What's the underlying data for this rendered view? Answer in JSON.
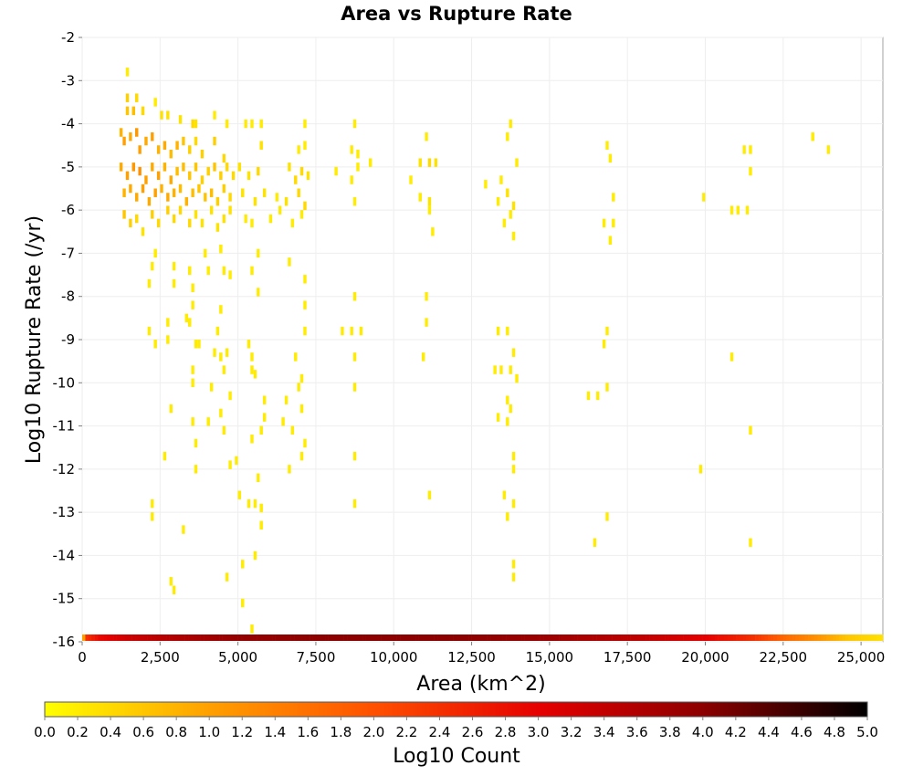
{
  "chart_data": {
    "type": "heatmap",
    "title": "Area vs Rupture Rate",
    "xlabel": "Area (km^2)",
    "ylabel": "Log10 Rupture Rate (/yr)",
    "xlim": [
      0,
      25700
    ],
    "ylim": [
      -16,
      -2
    ],
    "x_ticks": [
      0,
      2500,
      5000,
      7500,
      10000,
      12500,
      15000,
      17500,
      20000,
      22500,
      25000
    ],
    "x_tick_labels": [
      "0",
      "2,500",
      "5,000",
      "7,500",
      "10,000",
      "12,500",
      "15,000",
      "17,500",
      "20,000",
      "22,500",
      "25,000"
    ],
    "y_ticks": [
      -2,
      -3,
      -4,
      -5,
      -6,
      -7,
      -8,
      -9,
      -10,
      -11,
      -12,
      -13,
      -14,
      -15,
      -16
    ],
    "y_tick_labels": [
      "-2",
      "-3",
      "-4",
      "-5",
      "-6",
      "-7",
      "-8",
      "-9",
      "-10",
      "-11",
      "-12",
      "-13",
      "-14",
      "-15",
      "-16"
    ],
    "grid": true,
    "colorbar": {
      "label": "Log10 Count",
      "min": 0.0,
      "max": 5.0,
      "tick_labels": [
        "0.0",
        "0.2",
        "0.4",
        "0.6",
        "0.8",
        "1.0",
        "1.2",
        "1.4",
        "1.6",
        "1.8",
        "2.0",
        "2.2",
        "2.4",
        "2.6",
        "2.8",
        "3.0",
        "3.2",
        "3.4",
        "3.6",
        "3.8",
        "4.0",
        "4.2",
        "4.4",
        "4.6",
        "4.8",
        "5.0"
      ],
      "colormap": [
        "#ffff00",
        "#ffa000",
        "#ff5000",
        "#e60000",
        "#8c0000",
        "#000000"
      ]
    },
    "bin_width": 100,
    "bin_height": 0.1,
    "cells_columns": [
      "x",
      "y",
      "log10_count"
    ],
    "cells": [
      [
        1400,
        -2.8,
        0.2
      ],
      [
        1400,
        -3.4,
        0.5
      ],
      [
        1700,
        -3.4,
        0.4
      ],
      [
        1400,
        -3.7,
        0.6
      ],
      [
        1600,
        -3.7,
        0.7
      ],
      [
        1900,
        -3.7,
        0.4
      ],
      [
        2300,
        -3.5,
        0.2
      ],
      [
        2500,
        -3.8,
        0.3
      ],
      [
        2700,
        -3.8,
        0.3
      ],
      [
        3100,
        -3.9,
        0.3
      ],
      [
        3500,
        -4.0,
        0.4
      ],
      [
        3600,
        -4.0,
        0.3
      ],
      [
        4200,
        -3.8,
        0.2
      ],
      [
        4600,
        -4.0,
        0.2
      ],
      [
        5200,
        -4.0,
        0.2
      ],
      [
        5400,
        -4.0,
        0.2
      ],
      [
        5700,
        -4.0,
        0.2
      ],
      [
        7100,
        -4.0,
        0.2
      ],
      [
        8700,
        -4.0,
        0.2
      ],
      [
        11000,
        -4.3,
        0.2
      ],
      [
        13700,
        -4.0,
        0.2
      ],
      [
        13600,
        -4.3,
        0.2
      ],
      [
        16800,
        -4.5,
        0.2
      ],
      [
        21200,
        -4.6,
        0.2
      ],
      [
        23400,
        -4.3,
        0.2
      ],
      [
        23900,
        -4.6,
        0.2
      ],
      [
        1200,
        -4.2,
        0.8
      ],
      [
        1300,
        -4.4,
        1.0
      ],
      [
        1500,
        -4.3,
        0.9
      ],
      [
        1700,
        -4.2,
        1.1
      ],
      [
        1800,
        -4.6,
        1.0
      ],
      [
        2000,
        -4.4,
        0.9
      ],
      [
        2200,
        -4.3,
        1.0
      ],
      [
        2400,
        -4.6,
        0.8
      ],
      [
        2600,
        -4.5,
        0.9
      ],
      [
        2800,
        -4.7,
        0.7
      ],
      [
        3000,
        -4.5,
        0.8
      ],
      [
        3200,
        -4.4,
        0.6
      ],
      [
        3400,
        -4.6,
        0.5
      ],
      [
        3600,
        -4.4,
        0.4
      ],
      [
        3800,
        -4.7,
        0.5
      ],
      [
        4200,
        -4.4,
        0.5
      ],
      [
        4500,
        -4.8,
        0.4
      ],
      [
        5700,
        -4.5,
        0.3
      ],
      [
        6900,
        -4.6,
        0.2
      ],
      [
        7100,
        -4.5,
        0.2
      ],
      [
        8600,
        -4.6,
        0.2
      ],
      [
        8800,
        -4.7,
        0.2
      ],
      [
        9200,
        -4.9,
        0.2
      ],
      [
        10800,
        -4.9,
        0.3
      ],
      [
        11100,
        -4.9,
        0.4
      ],
      [
        11300,
        -4.9,
        0.3
      ],
      [
        13900,
        -4.9,
        0.2
      ],
      [
        16900,
        -4.8,
        0.2
      ],
      [
        21400,
        -4.6,
        0.2
      ],
      [
        1200,
        -5.0,
        0.9
      ],
      [
        1400,
        -5.2,
        1.0
      ],
      [
        1600,
        -5.0,
        1.1
      ],
      [
        1800,
        -5.1,
        1.2
      ],
      [
        2000,
        -5.3,
        1.0
      ],
      [
        2200,
        -5.0,
        0.9
      ],
      [
        2400,
        -5.2,
        1.0
      ],
      [
        2600,
        -5.0,
        0.8
      ],
      [
        2800,
        -5.3,
        0.9
      ],
      [
        3000,
        -5.1,
        0.7
      ],
      [
        3200,
        -5.0,
        0.7
      ],
      [
        3400,
        -5.2,
        0.6
      ],
      [
        3600,
        -5.0,
        0.6
      ],
      [
        3800,
        -5.3,
        0.5
      ],
      [
        4000,
        -5.1,
        0.5
      ],
      [
        4200,
        -5.0,
        0.6
      ],
      [
        4400,
        -5.2,
        0.5
      ],
      [
        4600,
        -5.0,
        0.4
      ],
      [
        4800,
        -5.2,
        0.4
      ],
      [
        5000,
        -5.0,
        0.3
      ],
      [
        5300,
        -5.2,
        0.3
      ],
      [
        5600,
        -5.1,
        0.4
      ],
      [
        6600,
        -5.0,
        0.3
      ],
      [
        6800,
        -5.3,
        0.4
      ],
      [
        7000,
        -5.1,
        0.4
      ],
      [
        7200,
        -5.2,
        0.3
      ],
      [
        8100,
        -5.1,
        0.2
      ],
      [
        8600,
        -5.3,
        0.2
      ],
      [
        8800,
        -5.0,
        0.2
      ],
      [
        10500,
        -5.3,
        0.2
      ],
      [
        12900,
        -5.4,
        0.2
      ],
      [
        13400,
        -5.3,
        0.2
      ],
      [
        21400,
        -5.1,
        0.2
      ],
      [
        1300,
        -5.6,
        0.8
      ],
      [
        1500,
        -5.5,
        0.9
      ],
      [
        1700,
        -5.7,
        0.9
      ],
      [
        1900,
        -5.5,
        1.0
      ],
      [
        2100,
        -5.8,
        0.9
      ],
      [
        2300,
        -5.6,
        1.0
      ],
      [
        2500,
        -5.5,
        0.8
      ],
      [
        2700,
        -5.7,
        0.9
      ],
      [
        2900,
        -5.6,
        0.8
      ],
      [
        3100,
        -5.5,
        0.7
      ],
      [
        3300,
        -5.8,
        0.8
      ],
      [
        3500,
        -5.6,
        0.7
      ],
      [
        3700,
        -5.5,
        0.6
      ],
      [
        3900,
        -5.7,
        0.6
      ],
      [
        4100,
        -5.6,
        0.7
      ],
      [
        4300,
        -5.8,
        0.5
      ],
      [
        4500,
        -5.5,
        0.5
      ],
      [
        4700,
        -5.7,
        0.4
      ],
      [
        5100,
        -5.6,
        0.3
      ],
      [
        5500,
        -5.8,
        0.3
      ],
      [
        5800,
        -5.6,
        0.3
      ],
      [
        6200,
        -5.7,
        0.2
      ],
      [
        6500,
        -5.8,
        0.3
      ],
      [
        6900,
        -5.6,
        0.4
      ],
      [
        7100,
        -5.9,
        0.4
      ],
      [
        8700,
        -5.8,
        0.2
      ],
      [
        10800,
        -5.7,
        0.2
      ],
      [
        11100,
        -5.8,
        0.3
      ],
      [
        13300,
        -5.8,
        0.2
      ],
      [
        13600,
        -5.6,
        0.3
      ],
      [
        13800,
        -5.9,
        0.3
      ],
      [
        17000,
        -5.7,
        0.2
      ],
      [
        19900,
        -5.7,
        0.2
      ],
      [
        1300,
        -6.1,
        0.6
      ],
      [
        1500,
        -6.3,
        0.5
      ],
      [
        1700,
        -6.2,
        0.4
      ],
      [
        1900,
        -6.5,
        0.3
      ],
      [
        2200,
        -6.1,
        0.5
      ],
      [
        2400,
        -6.3,
        0.4
      ],
      [
        2700,
        -6.0,
        0.5
      ],
      [
        2900,
        -6.2,
        0.4
      ],
      [
        3100,
        -6.0,
        0.4
      ],
      [
        3400,
        -6.3,
        0.4
      ],
      [
        3600,
        -6.1,
        0.3
      ],
      [
        3800,
        -6.3,
        0.3
      ],
      [
        4100,
        -6.0,
        0.3
      ],
      [
        4300,
        -6.4,
        0.3
      ],
      [
        4500,
        -6.2,
        0.3
      ],
      [
        4700,
        -6.0,
        0.3
      ],
      [
        5200,
        -6.2,
        0.2
      ],
      [
        5400,
        -6.3,
        0.2
      ],
      [
        6000,
        -6.2,
        0.2
      ],
      [
        6300,
        -6.0,
        0.2
      ],
      [
        6700,
        -6.3,
        0.2
      ],
      [
        7000,
        -6.1,
        0.2
      ],
      [
        11100,
        -6.0,
        0.2
      ],
      [
        11200,
        -6.5,
        0.2
      ],
      [
        13500,
        -6.3,
        0.2
      ],
      [
        13700,
        -6.1,
        0.2
      ],
      [
        13800,
        -6.6,
        0.2
      ],
      [
        16700,
        -6.3,
        0.2
      ],
      [
        16900,
        -6.7,
        0.2
      ],
      [
        17000,
        -6.3,
        0.2
      ],
      [
        20800,
        -6.0,
        0.2
      ],
      [
        21000,
        -6.0,
        0.2
      ],
      [
        21300,
        -6.0,
        0.2
      ],
      [
        2300,
        -7.0,
        0.2
      ],
      [
        2200,
        -7.3,
        0.2
      ],
      [
        2100,
        -7.7,
        0.2
      ],
      [
        2900,
        -7.3,
        0.2
      ],
      [
        2900,
        -7.7,
        0.2
      ],
      [
        3400,
        -7.4,
        0.2
      ],
      [
        3500,
        -7.8,
        0.2
      ],
      [
        3500,
        -8.2,
        0.2
      ],
      [
        3900,
        -7.0,
        0.2
      ],
      [
        4000,
        -7.4,
        0.2
      ],
      [
        4400,
        -6.9,
        0.2
      ],
      [
        4500,
        -7.4,
        0.2
      ],
      [
        4700,
        -7.5,
        0.2
      ],
      [
        5400,
        -7.4,
        0.2
      ],
      [
        5600,
        -7.0,
        0.2
      ],
      [
        5600,
        -7.9,
        0.2
      ],
      [
        6600,
        -7.2,
        0.2
      ],
      [
        7100,
        -7.6,
        0.2
      ],
      [
        7100,
        -8.2,
        0.2
      ],
      [
        8700,
        -8.0,
        0.2
      ],
      [
        11000,
        -8.0,
        0.2
      ],
      [
        3400,
        -8.6,
        0.2
      ],
      [
        4400,
        -8.3,
        0.2
      ],
      [
        2100,
        -8.8,
        0.2
      ],
      [
        2300,
        -9.1,
        0.2
      ],
      [
        2700,
        -8.6,
        0.2
      ],
      [
        2700,
        -9.0,
        0.2
      ],
      [
        3300,
        -8.5,
        0.2
      ],
      [
        3600,
        -9.1,
        0.2
      ],
      [
        3700,
        -9.1,
        0.2
      ],
      [
        4200,
        -9.3,
        0.2
      ],
      [
        4300,
        -8.8,
        0.2
      ],
      [
        4400,
        -9.4,
        0.2
      ],
      [
        4600,
        -9.3,
        0.2
      ],
      [
        5300,
        -9.1,
        0.2
      ],
      [
        5400,
        -9.4,
        0.2
      ],
      [
        5400,
        -9.7,
        0.2
      ],
      [
        6800,
        -9.4,
        0.2
      ],
      [
        7100,
        -8.8,
        0.2
      ],
      [
        7000,
        -9.9,
        0.2
      ],
      [
        8300,
        -8.8,
        0.2
      ],
      [
        8600,
        -8.8,
        0.2
      ],
      [
        8700,
        -9.4,
        0.2
      ],
      [
        8900,
        -8.8,
        0.2
      ],
      [
        10900,
        -9.4,
        0.2
      ],
      [
        11000,
        -8.6,
        0.2
      ],
      [
        13300,
        -8.8,
        0.2
      ],
      [
        13600,
        -8.8,
        0.2
      ],
      [
        13800,
        -9.3,
        0.2
      ],
      [
        16800,
        -8.8,
        0.2
      ],
      [
        16700,
        -9.1,
        0.2
      ],
      [
        20800,
        -9.4,
        0.2
      ],
      [
        3500,
        -9.7,
        0.2
      ],
      [
        3500,
        -10.0,
        0.2
      ],
      [
        4100,
        -10.1,
        0.2
      ],
      [
        4500,
        -9.7,
        0.2
      ],
      [
        4700,
        -10.3,
        0.2
      ],
      [
        5500,
        -9.8,
        0.2
      ],
      [
        5800,
        -10.4,
        0.2
      ],
      [
        6500,
        -10.4,
        0.2
      ],
      [
        6900,
        -10.1,
        0.2
      ],
      [
        7000,
        -10.6,
        0.2
      ],
      [
        8700,
        -10.1,
        0.2
      ],
      [
        13200,
        -9.7,
        0.2
      ],
      [
        13400,
        -9.7,
        0.2
      ],
      [
        13700,
        -9.7,
        0.2
      ],
      [
        13900,
        -9.9,
        0.2
      ],
      [
        13600,
        -10.4,
        0.2
      ],
      [
        16200,
        -10.3,
        0.2
      ],
      [
        16500,
        -10.3,
        0.2
      ],
      [
        16800,
        -10.1,
        0.2
      ],
      [
        2800,
        -10.6,
        0.2
      ],
      [
        3500,
        -10.9,
        0.2
      ],
      [
        3600,
        -11.4,
        0.2
      ],
      [
        4000,
        -10.9,
        0.2
      ],
      [
        4400,
        -10.7,
        0.2
      ],
      [
        4500,
        -11.1,
        0.2
      ],
      [
        5400,
        -11.3,
        0.2
      ],
      [
        5800,
        -10.8,
        0.2
      ],
      [
        5700,
        -11.1,
        0.2
      ],
      [
        6400,
        -10.9,
        0.2
      ],
      [
        6700,
        -11.1,
        0.2
      ],
      [
        7100,
        -11.4,
        0.2
      ],
      [
        13300,
        -10.8,
        0.2
      ],
      [
        13600,
        -10.9,
        0.2
      ],
      [
        13700,
        -10.6,
        0.2
      ],
      [
        21400,
        -11.1,
        0.2
      ],
      [
        2600,
        -11.7,
        0.2
      ],
      [
        3600,
        -12.0,
        0.2
      ],
      [
        4700,
        -11.9,
        0.2
      ],
      [
        4900,
        -11.8,
        0.2
      ],
      [
        5600,
        -12.2,
        0.2
      ],
      [
        6600,
        -12.0,
        0.2
      ],
      [
        7000,
        -11.7,
        0.2
      ],
      [
        8700,
        -11.7,
        0.2
      ],
      [
        13800,
        -11.7,
        0.2
      ],
      [
        13800,
        -12.0,
        0.2
      ],
      [
        19800,
        -12.0,
        0.2
      ],
      [
        2200,
        -12.8,
        0.2
      ],
      [
        2200,
        -13.1,
        0.2
      ],
      [
        3200,
        -13.4,
        0.2
      ],
      [
        5000,
        -12.6,
        0.2
      ],
      [
        5300,
        -12.8,
        0.2
      ],
      [
        5500,
        -12.8,
        0.2
      ],
      [
        5700,
        -12.9,
        0.2
      ],
      [
        5700,
        -13.3,
        0.2
      ],
      [
        8700,
        -12.8,
        0.2
      ],
      [
        11100,
        -12.6,
        0.2
      ],
      [
        13500,
        -12.6,
        0.2
      ],
      [
        13600,
        -13.1,
        0.2
      ],
      [
        13800,
        -12.8,
        0.2
      ],
      [
        16800,
        -13.1,
        0.2
      ],
      [
        16400,
        -13.7,
        0.2
      ],
      [
        21400,
        -13.7,
        0.2
      ],
      [
        5500,
        -14.0,
        0.2
      ],
      [
        5100,
        -14.2,
        0.2
      ],
      [
        4600,
        -14.5,
        0.2
      ],
      [
        2800,
        -14.6,
        0.2
      ],
      [
        2900,
        -14.8,
        0.2
      ],
      [
        13800,
        -14.2,
        0.2
      ],
      [
        13800,
        -14.5,
        0.2
      ],
      [
        5100,
        -15.1,
        0.2
      ],
      [
        5400,
        -15.7,
        0.2
      ]
    ],
    "baseline_row": {
      "y": -16,
      "x_range": [
        0,
        25700
      ],
      "log10_count_profile_x": [
        0,
        100,
        500,
        1500,
        3000,
        5000,
        8000,
        12000,
        15000,
        18000,
        20000,
        21500,
        22500,
        23500,
        24500,
        25700
      ],
      "log10_count_profile": [
        1.0,
        2.4,
        2.9,
        3.3,
        3.6,
        3.9,
        4.0,
        4.0,
        3.8,
        3.4,
        3.0,
        2.4,
        1.7,
        1.2,
        0.6,
        0.3
      ]
    }
  }
}
